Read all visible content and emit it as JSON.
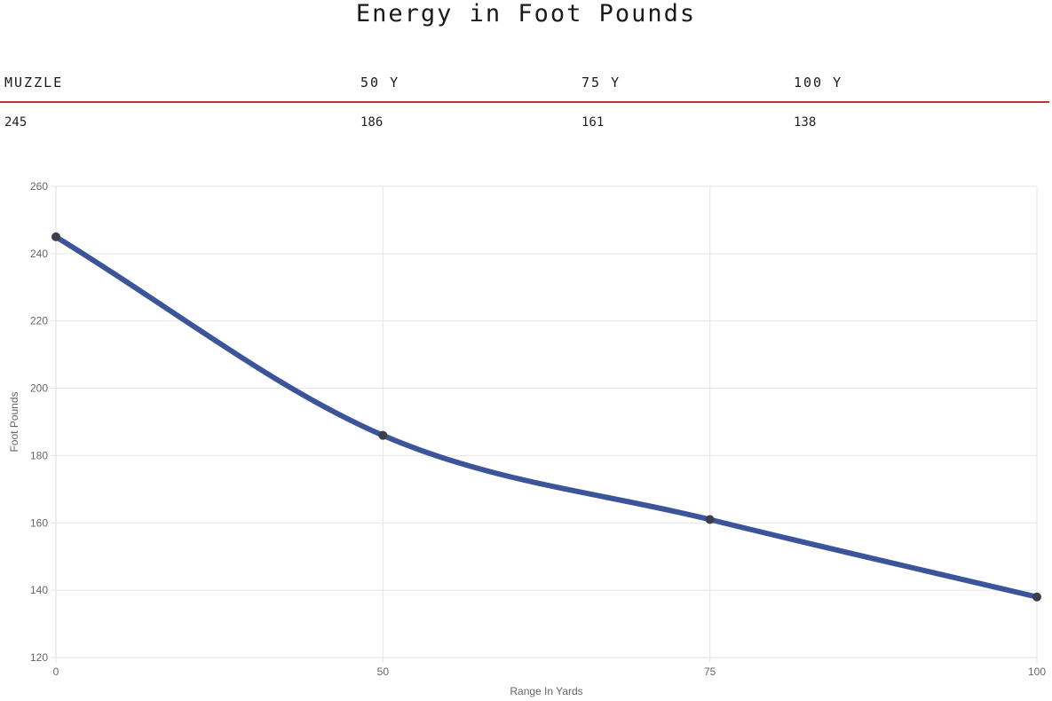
{
  "page": {
    "title": "Energy in Foot Pounds"
  },
  "table": {
    "headers": [
      "MUZZLE",
      "50 Y",
      "75 Y",
      "100 Y"
    ],
    "values": [
      "245",
      "186",
      "161",
      "138"
    ]
  },
  "colors": {
    "line": "#3b549a",
    "point": "#3a3f4a",
    "grid": "#e5e5e5",
    "table_rule": "#b53a2c"
  },
  "chart_data": {
    "type": "line",
    "title": "",
    "xlabel": "Range In Yards",
    "ylabel": "Foot Pounds",
    "categories": [
      "0",
      "50",
      "75",
      "100"
    ],
    "series": [
      {
        "values": [
          245,
          186,
          161,
          138
        ]
      }
    ],
    "ylim": [
      120,
      260
    ],
    "yticks": [
      120,
      140,
      160,
      180,
      200,
      220,
      240,
      260
    ],
    "grid": true,
    "legend": "none",
    "smoothed": true
  }
}
